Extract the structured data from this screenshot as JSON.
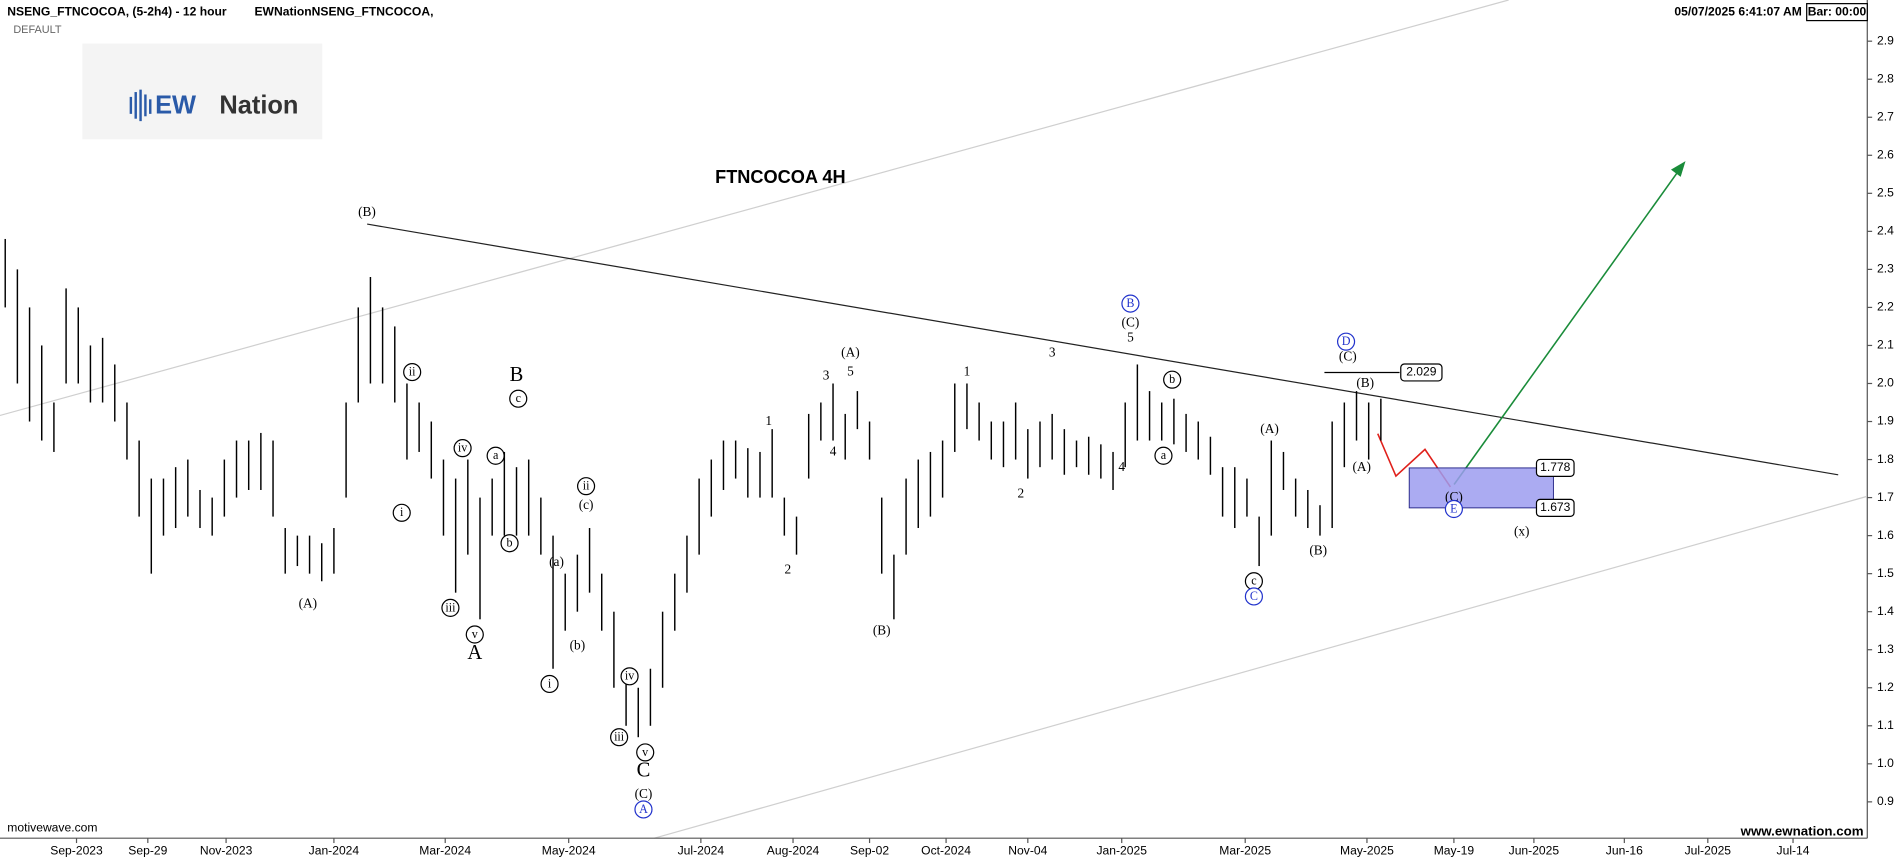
{
  "header": {
    "symbol": "NSENG_FTNCOCOA, (5-2h4) - 12 hour",
    "study": "EWNationNSENG_FTNCOCOA,",
    "template": "DEFAULT",
    "timestamp": "05/07/2025 6:41:07 AM",
    "bar_timer": "Bar: 00:00"
  },
  "logo": {
    "brand": "EW",
    "name": "Nation"
  },
  "footer": {
    "source": "motivewave.com",
    "website": "www.ewnation.com"
  },
  "chart_data": {
    "type": "ohlc",
    "title": "FTNCOCOA 4H",
    "color": "#000000",
    "x": [
      3,
      10,
      17,
      24,
      31,
      38,
      45,
      52,
      59,
      66,
      73,
      80,
      87,
      94,
      101,
      108,
      115,
      122,
      129,
      136,
      143,
      150,
      157,
      164,
      171,
      178,
      185,
      192,
      199,
      206,
      213,
      220,
      227,
      234,
      241,
      248,
      255,
      262,
      269,
      276,
      283,
      290,
      297,
      304,
      311,
      318,
      325,
      332,
      339,
      346,
      353,
      360,
      367,
      374,
      381,
      388,
      395,
      402,
      409,
      416,
      423,
      430,
      437,
      444,
      451,
      458,
      465,
      472,
      479,
      486,
      493,
      500,
      507,
      514,
      521,
      528,
      535,
      542,
      549,
      556,
      563,
      570,
      577,
      584,
      591,
      598,
      605,
      612,
      619,
      626,
      633,
      640,
      647,
      654,
      661,
      668,
      675,
      682,
      689,
      696,
      703,
      710,
      717,
      724,
      731,
      738,
      745,
      752,
      759,
      766,
      773,
      780,
      787,
      794
    ],
    "high": [
      2.38,
      2.3,
      2.2,
      2.1,
      1.95,
      2.25,
      2.2,
      2.1,
      2.12,
      2.05,
      1.95,
      1.85,
      1.75,
      1.75,
      1.78,
      1.8,
      1.72,
      1.7,
      1.8,
      1.85,
      1.85,
      1.87,
      1.85,
      1.62,
      1.6,
      1.6,
      1.58,
      1.62,
      1.95,
      2.2,
      2.28,
      2.2,
      2.15,
      2.0,
      1.95,
      1.9,
      1.8,
      1.75,
      1.8,
      1.7,
      1.75,
      1.82,
      1.78,
      1.8,
      1.7,
      1.6,
      1.5,
      1.55,
      1.62,
      1.5,
      1.4,
      1.25,
      1.2,
      1.25,
      1.4,
      1.5,
      1.6,
      1.75,
      1.8,
      1.85,
      1.85,
      1.83,
      1.82,
      1.88,
      1.7,
      1.65,
      1.92,
      1.95,
      2.0,
      1.92,
      1.98,
      1.9,
      1.7,
      1.55,
      1.75,
      1.8,
      1.82,
      1.85,
      2.0,
      2.0,
      1.95,
      1.9,
      1.9,
      1.95,
      1.88,
      1.9,
      1.92,
      1.88,
      1.85,
      1.86,
      1.84,
      1.82,
      1.95,
      2.05,
      1.98,
      1.95,
      1.96,
      1.92,
      1.9,
      1.86,
      1.78,
      1.78,
      1.75,
      1.65,
      1.85,
      1.82,
      1.75,
      1.72,
      1.68,
      1.9,
      1.95,
      1.98,
      1.95,
      1.96
    ],
    "low": [
      2.2,
      2.0,
      1.9,
      1.85,
      1.82,
      2.0,
      2.0,
      1.95,
      1.95,
      1.9,
      1.8,
      1.65,
      1.5,
      1.6,
      1.62,
      1.65,
      1.62,
      1.6,
      1.65,
      1.7,
      1.72,
      1.72,
      1.65,
      1.5,
      1.52,
      1.5,
      1.48,
      1.5,
      1.7,
      1.95,
      2.0,
      2.0,
      1.95,
      1.8,
      1.82,
      1.75,
      1.6,
      1.45,
      1.55,
      1.38,
      1.6,
      1.6,
      1.6,
      1.6,
      1.55,
      1.25,
      1.35,
      1.4,
      1.45,
      1.35,
      1.2,
      1.1,
      1.07,
      1.1,
      1.2,
      1.35,
      1.45,
      1.55,
      1.65,
      1.72,
      1.75,
      1.7,
      1.7,
      1.7,
      1.6,
      1.55,
      1.75,
      1.85,
      1.85,
      1.8,
      1.88,
      1.8,
      1.5,
      1.38,
      1.55,
      1.62,
      1.65,
      1.7,
      1.82,
      1.88,
      1.85,
      1.8,
      1.78,
      1.8,
      1.75,
      1.78,
      1.8,
      1.76,
      1.78,
      1.76,
      1.75,
      1.72,
      1.78,
      1.85,
      1.85,
      1.85,
      1.84,
      1.82,
      1.8,
      1.76,
      1.65,
      1.62,
      1.65,
      1.52,
      1.6,
      1.72,
      1.65,
      1.62,
      1.6,
      1.62,
      1.78,
      1.85,
      1.8,
      1.85
    ],
    "xlim": [
      0,
      1073
    ],
    "xticks": [
      {
        "value": 44,
        "label": "Sep-2023"
      },
      {
        "value": 85,
        "label": "Sep-29"
      },
      {
        "value": 130,
        "label": "Nov-2023"
      },
      {
        "value": 192,
        "label": "Jan-2024"
      },
      {
        "value": 256,
        "label": "Mar-2024"
      },
      {
        "value": 327,
        "label": "May-2024"
      },
      {
        "value": 403,
        "label": "Jul-2024"
      },
      {
        "value": 456,
        "label": "Aug-2024"
      },
      {
        "value": 500,
        "label": "Sep-02"
      },
      {
        "value": 544,
        "label": "Oct-2024"
      },
      {
        "value": 591,
        "label": "Nov-04"
      },
      {
        "value": 645,
        "label": "Jan-2025"
      },
      {
        "value": 716,
        "label": "Mar-2025"
      },
      {
        "value": 786,
        "label": "May-2025"
      },
      {
        "value": 836,
        "label": "May-19"
      },
      {
        "value": 882,
        "label": "Jun-2025"
      },
      {
        "value": 934,
        "label": "Jun-16"
      },
      {
        "value": 982,
        "label": "Jul-2025"
      },
      {
        "value": 1031,
        "label": "Jul-14"
      }
    ],
    "ylim": [
      0.8,
      3.0
    ],
    "yticks": [
      0.9,
      {
        "value": 1,
        "label": "1.0"
      },
      1.1,
      1.2,
      1.3,
      1.4,
      1.5,
      1.6,
      1.7,
      1.8,
      1.9,
      {
        "value": 2,
        "label": "2.0"
      },
      2.1,
      2.2,
      2.3,
      2.4,
      2.5,
      2.6,
      2.7,
      2.8,
      2.9
    ],
    "levels": [
      2.029,
      1.778,
      1.673
    ],
    "annotations": [
      {
        "text": "(B)",
        "x": 211,
        "y": 2.45
      },
      {
        "text": "(A)",
        "x": 177,
        "y": 1.42
      },
      {
        "text": "ii",
        "x": 237,
        "y": 2.03,
        "circled": true
      },
      {
        "text": "i",
        "x": 231,
        "y": 1.66,
        "circled": true
      },
      {
        "text": "iii",
        "x": 259,
        "y": 1.41,
        "circled": true
      },
      {
        "text": "iv",
        "x": 266,
        "y": 1.83,
        "circled": true
      },
      {
        "text": "v",
        "x": 273,
        "y": 1.34,
        "circled": true
      },
      {
        "text": "A",
        "x": 273,
        "y": 1.29,
        "size": "large"
      },
      {
        "text": "B",
        "x": 297,
        "y": 2.02,
        "size": "large"
      },
      {
        "text": "c",
        "x": 298,
        "y": 1.96,
        "circled": true
      },
      {
        "text": "a",
        "x": 285,
        "y": 1.81,
        "circled": true
      },
      {
        "text": "b",
        "x": 293,
        "y": 1.58,
        "circled": true
      },
      {
        "text": "ii",
        "x": 337,
        "y": 1.73,
        "circled": true
      },
      {
        "text": "(c)",
        "x": 337,
        "y": 1.68
      },
      {
        "text": "(a)",
        "x": 320,
        "y": 1.53
      },
      {
        "text": "(b)",
        "x": 332,
        "y": 1.31
      },
      {
        "text": "i",
        "x": 316,
        "y": 1.21,
        "circled": true
      },
      {
        "text": "iv",
        "x": 362,
        "y": 1.23,
        "circled": true
      },
      {
        "text": "iii",
        "x": 356,
        "y": 1.07,
        "circled": true
      },
      {
        "text": "v",
        "x": 371,
        "y": 1.03,
        "circled": true
      },
      {
        "text": "C",
        "x": 370,
        "y": 0.98,
        "size": "large"
      },
      {
        "text": "(C)",
        "x": 370,
        "y": 0.92
      },
      {
        "text": "A",
        "x": 370,
        "y": 0.88,
        "circled": true,
        "color": "#2233cc"
      },
      {
        "text": "1",
        "x": 442,
        "y": 1.9
      },
      {
        "text": "2",
        "x": 453,
        "y": 1.51
      },
      {
        "text": "3",
        "x": 475,
        "y": 2.02
      },
      {
        "text": "4",
        "x": 479,
        "y": 1.82
      },
      {
        "text": "5",
        "x": 489,
        "y": 2.03
      },
      {
        "text": "(A)",
        "x": 489,
        "y": 2.08
      },
      {
        "text": "(B)",
        "x": 507,
        "y": 1.35
      },
      {
        "text": "1",
        "x": 556,
        "y": 2.03
      },
      {
        "text": "2",
        "x": 587,
        "y": 1.71
      },
      {
        "text": "3",
        "x": 605,
        "y": 2.08
      },
      {
        "text": "4",
        "x": 645,
        "y": 1.78
      },
      {
        "text": "5",
        "x": 650,
        "y": 2.12
      },
      {
        "text": "(C)",
        "x": 650,
        "y": 2.16
      },
      {
        "text": "B",
        "x": 650,
        "y": 2.21,
        "circled": true,
        "color": "#2233cc"
      },
      {
        "text": "b",
        "x": 674,
        "y": 2.01,
        "circled": true
      },
      {
        "text": "a",
        "x": 669,
        "y": 1.81,
        "circled": true
      },
      {
        "text": "(A)",
        "x": 730,
        "y": 1.88
      },
      {
        "text": "c",
        "x": 721,
        "y": 1.48,
        "circled": true
      },
      {
        "text": "C",
        "x": 721,
        "y": 1.44,
        "circled": true,
        "color": "#2233cc"
      },
      {
        "text": "(B)",
        "x": 758,
        "y": 1.56
      },
      {
        "text": "D",
        "x": 774,
        "y": 2.11,
        "circled": true,
        "color": "#2233cc"
      },
      {
        "text": "(C)",
        "x": 775,
        "y": 2.07
      },
      {
        "text": "(B)",
        "x": 785,
        "y": 2.0
      },
      {
        "text": "(A)",
        "x": 783,
        "y": 1.78
      },
      {
        "text": "(C)",
        "x": 836,
        "y": 1.7
      },
      {
        "text": "E",
        "x": 836,
        "y": 1.67,
        "circled": true,
        "color": "#2233cc"
      },
      {
        "text": "(x)",
        "x": 875,
        "y": 1.61
      }
    ]
  }
}
